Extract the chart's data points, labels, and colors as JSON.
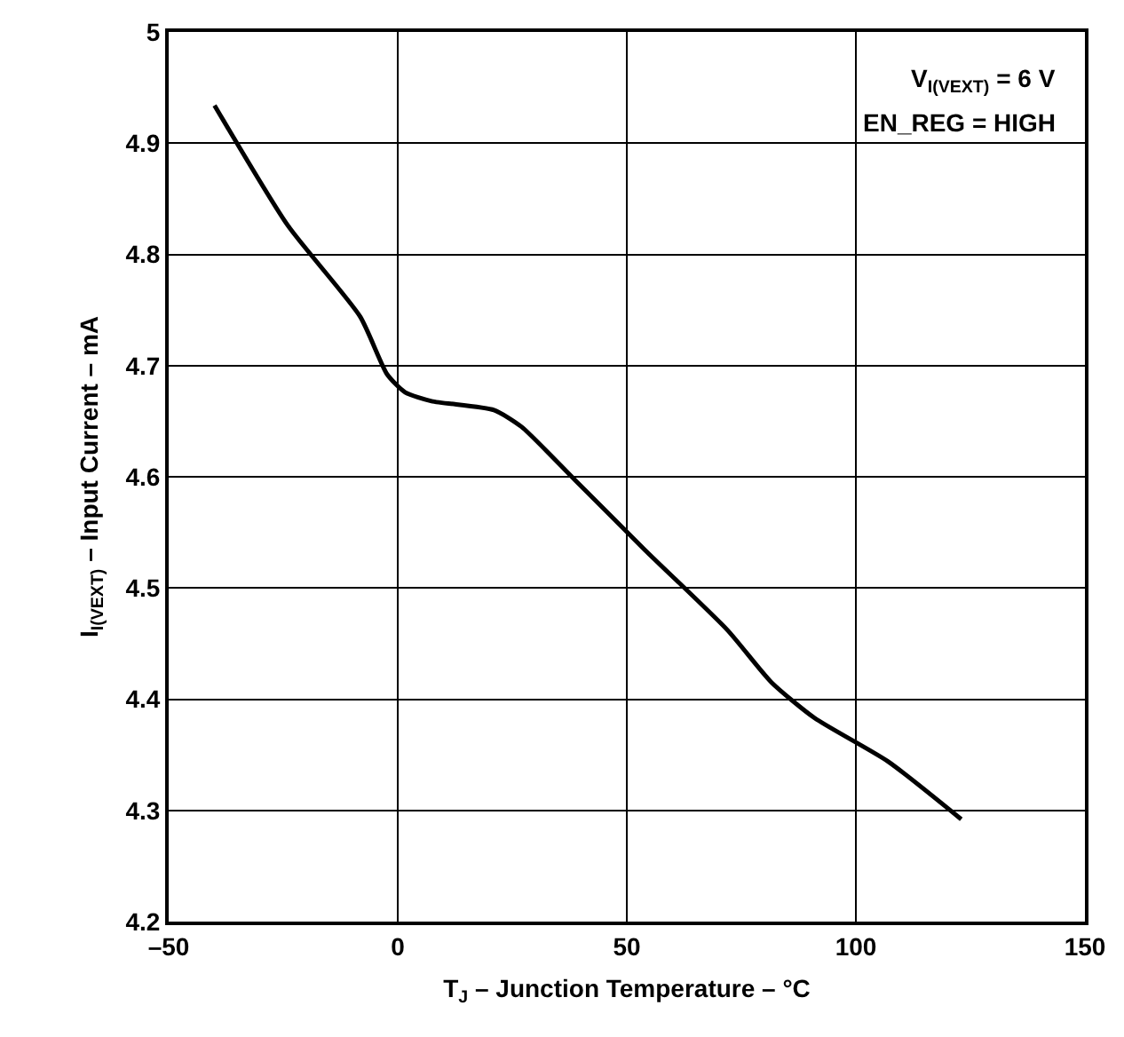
{
  "chart_data": {
    "type": "line",
    "xlabel": "T$_{J}$ – Junction Temperature – °C",
    "ylabel": "I$_{I(VEXT)}$ – Input Current – mA",
    "annotations": [
      "V$_{I(VEXT)}$ = 6 V",
      "EN_REG = HIGH"
    ],
    "x": [
      -40,
      -24,
      -8.2,
      -2.3,
      1.6,
      7.4,
      21,
      27,
      38.7,
      54,
      72,
      81.6,
      91,
      107,
      123
    ],
    "series": [
      {
        "color": "#000000",
        "values": [
          4.934,
          4.826,
          4.744,
          4.692,
          4.676,
          4.668,
          4.66,
          4.645,
          4.597,
          4.534,
          4.462,
          4.415,
          4.383,
          4.344,
          4.292
        ]
      }
    ],
    "xlim": [
      -50,
      150
    ],
    "xticks": [
      {
        "value": -50,
        "label": "–50"
      },
      0,
      50,
      100,
      150
    ],
    "ylim": [
      4.2,
      5
    ],
    "yticks": [
      4.2,
      4.3,
      4.4,
      4.5,
      4.6,
      4.7,
      4.8,
      4.9,
      5
    ],
    "grid": true,
    "marker": "none",
    "line_style": "solid"
  }
}
